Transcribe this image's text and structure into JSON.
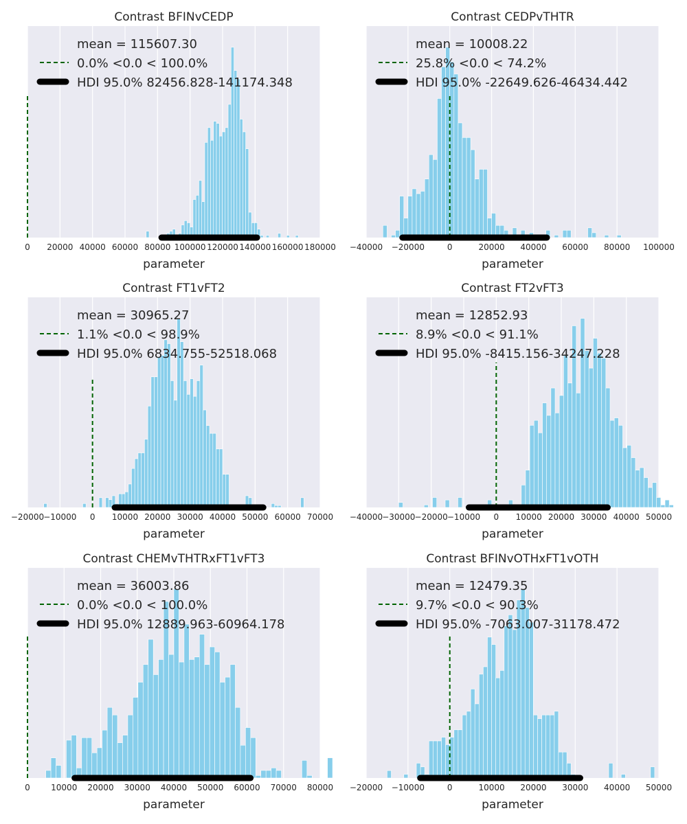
{
  "chart_data": [
    {
      "type": "bar",
      "title": "Contrast BFINvCEDP",
      "xlabel": "parameter",
      "xlim": [
        0,
        180000
      ],
      "xticks": [
        0,
        20000,
        40000,
        60000,
        80000,
        100000,
        120000,
        140000,
        160000,
        180000
      ],
      "xtick_labels": [
        "0",
        "20000",
        "40000",
        "60000",
        "80000",
        "100000",
        "120000",
        "140000",
        "160000",
        "180000"
      ],
      "grid": true,
      "legend_position": "top-left",
      "legend": {
        "mean_label": "mean = 115607.30",
        "ref_label": "0.0% <0.0 < 100.0%",
        "hdi_label": "HDI 95.0% 82456.828-141174.348"
      },
      "ref_value": 0,
      "ref_height": 0.67,
      "hdi": [
        82456.828,
        141174.348
      ],
      "bin_start": 73000,
      "bin_width": 1800,
      "counts": [
        3,
        0,
        0,
        0,
        0,
        0,
        1,
        2,
        3,
        4,
        1,
        2,
        6,
        8,
        7,
        5,
        18,
        20,
        27,
        17,
        45,
        52,
        46,
        55,
        54,
        48,
        50,
        52,
        63,
        90,
        79,
        75,
        56,
        50,
        42,
        12,
        7,
        7,
        4,
        1,
        0,
        1,
        0,
        0,
        0,
        2,
        0,
        0,
        1,
        0,
        0,
        1
      ]
    },
    {
      "type": "bar",
      "title": "Contrast CEDPvTHTR",
      "xlabel": "parameter",
      "xlim": [
        -40000,
        100000
      ],
      "xticks": [
        -40000,
        -20000,
        0,
        20000,
        40000,
        60000,
        80000,
        100000
      ],
      "xtick_labels": [
        "−40000",
        "−20000",
        "0",
        "20000",
        "40000",
        "60000",
        "80000",
        "100000"
      ],
      "grid": true,
      "legend_position": "top-left",
      "legend": {
        "mean_label": "mean = 10008.22",
        "ref_label": "25.8% <0.0 < 74.2%",
        "hdi_label": "HDI 95.0% -22649.626-46434.442"
      },
      "ref_value": 0,
      "ref_height": 0.68,
      "hdi": [
        -22649.626,
        46434.442
      ],
      "bin_start": -32000,
      "bin_width": 2000,
      "counts": [
        5,
        0,
        1,
        3,
        17,
        8,
        17,
        20,
        18,
        19,
        24,
        34,
        32,
        57,
        70,
        78,
        72,
        67,
        47,
        41,
        41,
        36,
        24,
        28,
        28,
        8,
        10,
        5,
        5,
        3,
        0,
        4,
        0,
        3,
        0,
        2,
        1,
        1,
        0,
        3,
        0,
        1,
        0,
        3,
        3,
        0,
        0,
        0,
        0,
        4,
        2,
        0,
        0,
        1,
        0,
        0,
        1
      ]
    },
    {
      "type": "bar",
      "title": "Contrast FT1vFT2",
      "xlabel": "parameter",
      "xlim": [
        -20000,
        70000
      ],
      "xticks": [
        -20000,
        -10000,
        0,
        10000,
        20000,
        30000,
        40000,
        50000,
        60000,
        70000
      ],
      "xtick_labels": [
        "−20000",
        "−10000",
        "0",
        "10000",
        "20000",
        "30000",
        "40000",
        "50000",
        "60000",
        "70000"
      ],
      "grid": true,
      "legend_position": "top-left",
      "legend": {
        "mean_label": "mean = 30965.27",
        "ref_label": "1.1% <0.0 < 98.9%",
        "hdi_label": "HDI 95.0% 6834.755-52518.068"
      },
      "ref_value": 0,
      "ref_height": 0.62,
      "hdi": [
        6834.755,
        52518.068
      ],
      "bin_start": -15000,
      "bin_width": 1000,
      "counts": [
        2,
        0,
        0,
        0,
        0,
        0,
        0,
        0,
        0,
        0,
        0,
        0,
        2,
        0,
        0,
        0,
        0,
        5,
        0,
        5,
        4,
        6,
        2,
        7,
        7,
        8,
        12,
        20,
        25,
        28,
        28,
        35,
        52,
        67,
        67,
        77,
        78,
        86,
        84,
        65,
        55,
        97,
        85,
        65,
        58,
        66,
        57,
        65,
        73,
        50,
        42,
        38,
        38,
        30,
        30,
        17,
        17,
        0,
        0,
        0,
        0,
        0,
        6,
        5,
        0,
        0,
        1,
        0,
        0,
        0,
        2,
        1,
        1,
        0,
        0,
        0,
        0,
        0,
        0,
        5
      ]
    },
    {
      "type": "bar",
      "title": "Contrast FT2vFT3",
      "xlabel": "parameter",
      "xlim": [
        -40000,
        50000
      ],
      "xticks": [
        -40000,
        -30000,
        -20000,
        -10000,
        0,
        10000,
        20000,
        30000,
        40000,
        50000
      ],
      "xtick_labels": [
        "−40000",
        "−30000",
        "−20000",
        "−10000",
        "0",
        "10000",
        "20000",
        "30000",
        "40000",
        "50000"
      ],
      "grid": true,
      "legend_position": "top-left",
      "legend": {
        "mean_label": "mean = 12852.93",
        "ref_label": "8.9% <0.0 < 91.1%",
        "hdi_label": "HDI 95.0% -8415.156-34247.228"
      },
      "ref_value": 0,
      "ref_height": 0.69,
      "hdi": [
        -8415.156,
        34247.228
      ],
      "bin_start": -30000,
      "bin_width": 1300,
      "counts": [
        2,
        0,
        0,
        0,
        0,
        0,
        1,
        0,
        4,
        0,
        0,
        3,
        0,
        0,
        4,
        0,
        0,
        1,
        0,
        0,
        0,
        3,
        0,
        1,
        0,
        0,
        3,
        0,
        0,
        9,
        15,
        33,
        35,
        30,
        42,
        37,
        48,
        38,
        45,
        61,
        50,
        73,
        46,
        76,
        63,
        56,
        68,
        62,
        60,
        48,
        35,
        36,
        33,
        24,
        25,
        20,
        15,
        16,
        12,
        8,
        10,
        4,
        1,
        3,
        1,
        0,
        0,
        0,
        0,
        4,
        2,
        0,
        0,
        2,
        0,
        0,
        2
      ]
    },
    {
      "type": "bar",
      "title": "Contrast CHEMvTHTRxFT1vFT3",
      "xlabel": "parameter",
      "xlim": [
        0,
        80000
      ],
      "xticks": [
        0,
        10000,
        20000,
        30000,
        40000,
        50000,
        60000,
        70000,
        80000
      ],
      "xtick_labels": [
        "0",
        "10000",
        "20000",
        "30000",
        "40000",
        "50000",
        "60000",
        "70000",
        "80000"
      ],
      "grid": true,
      "legend_position": "top-left",
      "legend": {
        "mean_label": "mean = 36003.86",
        "ref_label": "0.0% <0.0 < 100.0%",
        "hdi_label": "HDI 95.0% 12889.963-60964.178"
      },
      "ref_value": 0,
      "ref_height": 0.68,
      "hdi": [
        12889.963,
        60964.178
      ],
      "bin_start": 5000,
      "bin_width": 1400,
      "counts": [
        3,
        8,
        5,
        0,
        15,
        17,
        4,
        16,
        16,
        10,
        12,
        19,
        28,
        25,
        14,
        17,
        25,
        32,
        38,
        45,
        55,
        41,
        47,
        70,
        49,
        75,
        46,
        61,
        47,
        48,
        57,
        45,
        52,
        50,
        38,
        40,
        45,
        28,
        13,
        20,
        16,
        1,
        3,
        3,
        4,
        3,
        0,
        0,
        0,
        0,
        7,
        1,
        0,
        0,
        0,
        8
      ]
    },
    {
      "type": "bar",
      "title": "Contrast BFINvOTHxFT1vOTH",
      "xlabel": "parameter",
      "xlim": [
        -20000,
        50000
      ],
      "xticks": [
        -20000,
        -10000,
        0,
        10000,
        20000,
        30000,
        40000,
        50000
      ],
      "xtick_labels": [
        "−20000",
        "−10000",
        "0",
        "10000",
        "20000",
        "30000",
        "40000",
        "50000"
      ],
      "grid": true,
      "legend_position": "top-left",
      "legend": {
        "mean_label": "mean = 12479.35",
        "ref_label": "9.7% <0.0 < 90.3%",
        "hdi_label": "HDI 95.0% -7063.007-31178.472"
      },
      "ref_value": 0,
      "ref_height": 0.68,
      "hdi": [
        -7063.007,
        31178.472
      ],
      "bin_start": -15000,
      "bin_width": 1000,
      "counts": [
        2,
        0,
        0,
        0,
        1,
        0,
        0,
        4,
        3,
        1,
        10,
        10,
        10,
        11,
        9,
        11,
        13,
        13,
        17,
        18,
        24,
        20,
        28,
        30,
        38,
        36,
        27,
        29,
        41,
        44,
        40,
        48,
        51,
        46,
        42,
        17,
        16,
        17,
        17,
        17,
        18,
        7,
        7,
        4,
        1,
        0,
        0,
        0,
        0,
        0,
        0,
        0,
        0,
        4,
        0,
        0,
        1,
        0,
        0,
        0,
        0,
        0,
        0,
        3,
        0,
        0,
        0,
        0,
        0,
        0,
        0,
        0,
        5,
        0,
        2,
        0
      ]
    }
  ]
}
